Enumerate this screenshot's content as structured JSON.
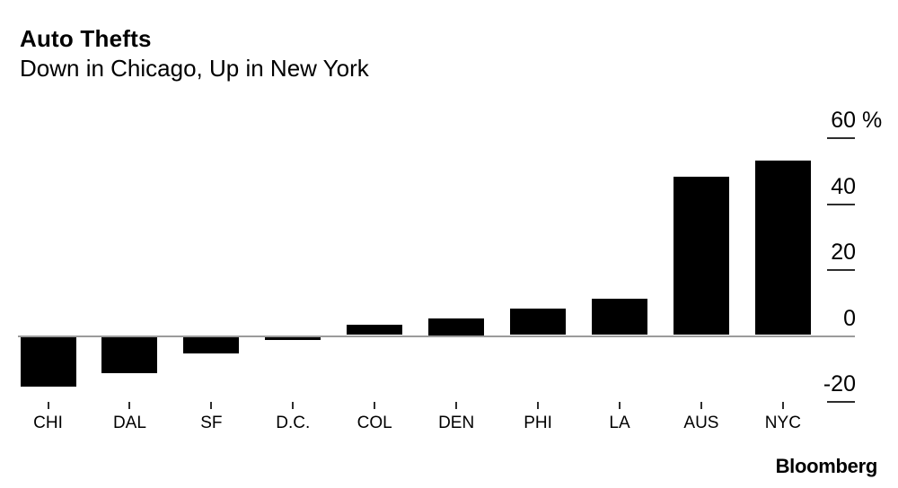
{
  "brand": "Bloomberg",
  "colors": {
    "background": "#ffffff",
    "bar": "#000000",
    "axis_line": "#9b9b9b",
    "tick": "#2e2e2e",
    "text": "#000000"
  },
  "chart_data": {
    "type": "bar",
    "title": "Auto Thefts",
    "subtitle": "Down in Chicago, Up in New York",
    "unit": "%",
    "categories": [
      "CHI",
      "DAL",
      "SF",
      "D.C.",
      "COL",
      "DEN",
      "PHI",
      "LA",
      "AUS",
      "NYC"
    ],
    "values": [
      -15,
      -11,
      -5,
      -1,
      3,
      5,
      8,
      11,
      48,
      53
    ],
    "y_axis": {
      "side": "right",
      "range": [
        -25,
        62
      ],
      "ticks": [
        {
          "value": 60,
          "label": "60",
          "suffix": " %"
        },
        {
          "value": 40,
          "label": "40",
          "suffix": ""
        },
        {
          "value": 20,
          "label": "20",
          "suffix": ""
        },
        {
          "value": 0,
          "label": "0",
          "suffix": ""
        },
        {
          "value": -20,
          "label": "-20",
          "suffix": ""
        }
      ]
    },
    "grid": false,
    "legend": false
  }
}
